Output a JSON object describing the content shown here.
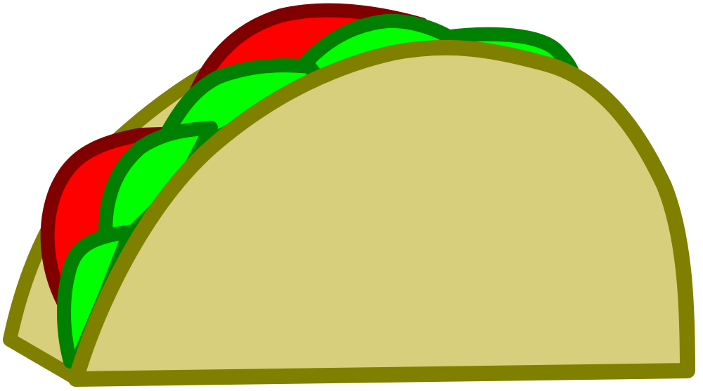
{
  "image": {
    "subject": "taco-clipart",
    "colors": {
      "shell_fill": "#d8cf7c",
      "shell_stroke": "#808000",
      "tomato_fill": "#ff0000",
      "tomato_stroke": "#800000",
      "lettuce_fill": "#00ff00",
      "lettuce_stroke": "#008000",
      "background": "#ffffff"
    }
  }
}
